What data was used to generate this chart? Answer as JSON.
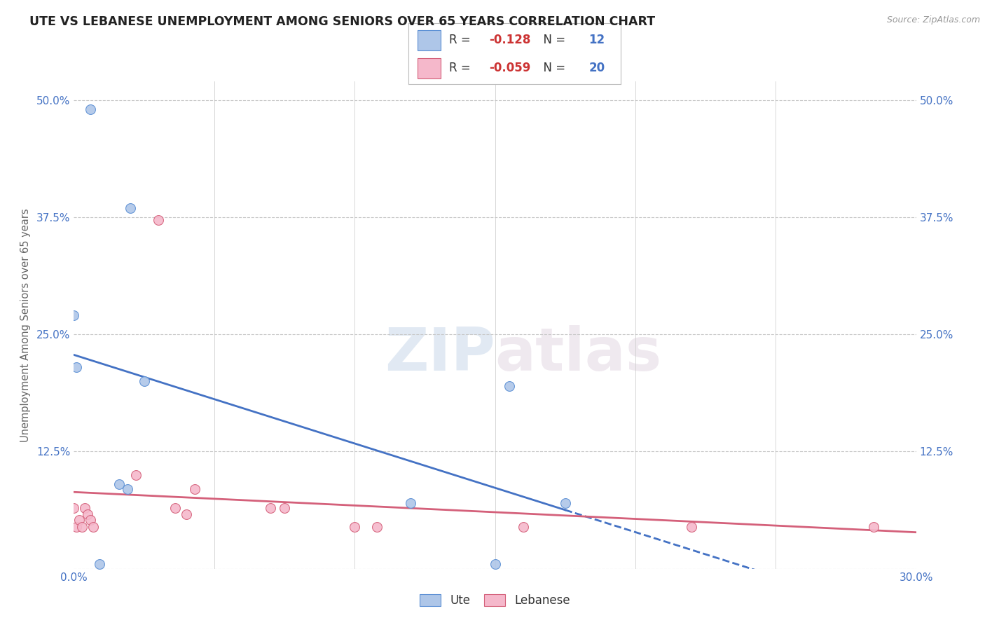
{
  "title": "UTE VS LEBANESE UNEMPLOYMENT AMONG SENIORS OVER 65 YEARS CORRELATION CHART",
  "source": "Source: ZipAtlas.com",
  "ylabel": "Unemployment Among Seniors over 65 years",
  "xlim": [
    0.0,
    0.3
  ],
  "ylim": [
    0.0,
    0.52
  ],
  "xticks": [
    0.0,
    0.05,
    0.1,
    0.15,
    0.2,
    0.25,
    0.3
  ],
  "yticks": [
    0.0,
    0.125,
    0.25,
    0.375,
    0.5
  ],
  "ute_x": [
    0.006,
    0.0,
    0.02,
    0.001,
    0.025,
    0.016,
    0.019,
    0.155,
    0.15,
    0.009,
    0.12,
    0.175
  ],
  "ute_y": [
    0.49,
    0.27,
    0.385,
    0.215,
    0.2,
    0.09,
    0.085,
    0.195,
    0.005,
    0.005,
    0.07,
    0.07
  ],
  "leb_x": [
    0.0,
    0.001,
    0.002,
    0.003,
    0.004,
    0.005,
    0.006,
    0.007,
    0.022,
    0.03,
    0.036,
    0.04,
    0.043,
    0.07,
    0.075,
    0.1,
    0.108,
    0.16,
    0.22,
    0.285
  ],
  "leb_y": [
    0.065,
    0.045,
    0.052,
    0.045,
    0.065,
    0.058,
    0.052,
    0.045,
    0.1,
    0.372,
    0.065,
    0.058,
    0.085,
    0.065,
    0.065,
    0.045,
    0.045,
    0.045,
    0.045,
    0.045
  ],
  "ute_color": "#aec6e8",
  "leb_color": "#f5b8cb",
  "ute_edge_color": "#5b8fd4",
  "leb_edge_color": "#d4607a",
  "ute_line_color": "#4472c4",
  "leb_line_color": "#d4607a",
  "ute_R": -0.128,
  "ute_N": 12,
  "leb_R": -0.059,
  "leb_N": 20,
  "marker_size": 100,
  "bg_color": "#ffffff",
  "grid_color": "#c8c8c8",
  "title_color": "#222222",
  "axis_color": "#4472c4",
  "ylabel_color": "#666666",
  "watermark_color": "#cddaeb",
  "legend_r_color": "#cc3333",
  "legend_n_color": "#4472c4"
}
